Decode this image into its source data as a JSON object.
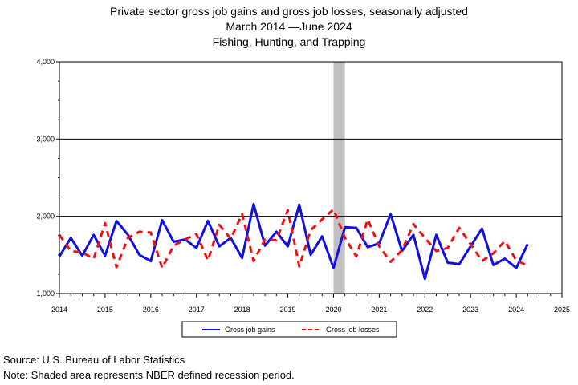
{
  "title": {
    "line1": "Private sector gross job gains and gross job losses, seasonally adjusted",
    "line2": "March 2014  —June 2024",
    "line3": "Fishing, Hunting, and Trapping"
  },
  "source": "Source: U.S. Bureau of Labor Statistics",
  "note": "Note: Shaded area represents NBER defined recession period.",
  "colors": {
    "gains": "#1010e0",
    "losses": "#ee1111",
    "recession": "#c0c0c0",
    "grid": "#000000"
  },
  "chart_data": {
    "type": "line",
    "title": "Private sector gross job gains and gross job losses, seasonally adjusted",
    "xlim": [
      2014,
      2025
    ],
    "ylim": [
      1000,
      4000
    ],
    "x_ticks": [
      "2014",
      "2015",
      "2016",
      "2017",
      "2018",
      "2019",
      "2020",
      "2021",
      "2022",
      "2023",
      "2024",
      "2025"
    ],
    "y_ticks": [
      {
        "value": 1000,
        "label": "1,000"
      },
      {
        "value": 2000,
        "label": "2,000"
      },
      {
        "value": 3000,
        "label": "3,000"
      },
      {
        "value": 4000,
        "label": "4,000"
      }
    ],
    "grid": "horizontal",
    "legend_position": "bottom-center",
    "recession": [
      2020.0,
      2020.25
    ],
    "series": [
      {
        "name": "Gross job gains",
        "style": "solid",
        "x": [
          2014.0,
          2014.25,
          2014.5,
          2014.75,
          2015.0,
          2015.25,
          2015.5,
          2015.75,
          2016.0,
          2016.25,
          2016.5,
          2016.75,
          2017.0,
          2017.25,
          2017.5,
          2017.75,
          2018.0,
          2018.25,
          2018.5,
          2018.75,
          2019.0,
          2019.25,
          2019.5,
          2019.75,
          2020.0,
          2020.25,
          2020.5,
          2020.75,
          2021.0,
          2021.25,
          2021.5,
          2021.75,
          2022.0,
          2022.25,
          2022.5,
          2022.75,
          2023.0,
          2023.25,
          2023.5,
          2023.75,
          2024.0,
          2024.25
        ],
        "values": [
          1480,
          1720,
          1490,
          1760,
          1490,
          1940,
          1760,
          1500,
          1420,
          1950,
          1670,
          1700,
          1590,
          1940,
          1610,
          1720,
          1460,
          2160,
          1620,
          1800,
          1610,
          2150,
          1500,
          1740,
          1330,
          1860,
          1850,
          1600,
          1650,
          2030,
          1550,
          1760,
          1190,
          1760,
          1400,
          1380,
          1610,
          1840,
          1370,
          1450,
          1330,
          1640
        ]
      },
      {
        "name": "Gross job losses",
        "style": "dashed",
        "x": [
          2014.0,
          2014.25,
          2014.5,
          2014.75,
          2015.0,
          2015.25,
          2015.5,
          2015.75,
          2016.0,
          2016.25,
          2016.5,
          2016.75,
          2017.0,
          2017.25,
          2017.5,
          2017.75,
          2018.0,
          2018.25,
          2018.5,
          2018.75,
          2019.0,
          2019.25,
          2019.5,
          2019.75,
          2020.0,
          2020.25,
          2020.5,
          2020.75,
          2021.0,
          2021.25,
          2021.5,
          2021.75,
          2022.0,
          2022.25,
          2022.5,
          2022.75,
          2023.0,
          2023.25,
          2023.5,
          2023.75,
          2024.0,
          2024.25
        ],
        "values": [
          1760,
          1550,
          1530,
          1450,
          1910,
          1340,
          1720,
          1800,
          1790,
          1330,
          1620,
          1700,
          1770,
          1430,
          1890,
          1710,
          2030,
          1420,
          1700,
          1690,
          2080,
          1350,
          1820,
          1960,
          2090,
          1720,
          1480,
          1960,
          1610,
          1410,
          1560,
          1900,
          1720,
          1550,
          1590,
          1850,
          1640,
          1420,
          1520,
          1680,
          1430,
          1360
        ]
      }
    ]
  }
}
